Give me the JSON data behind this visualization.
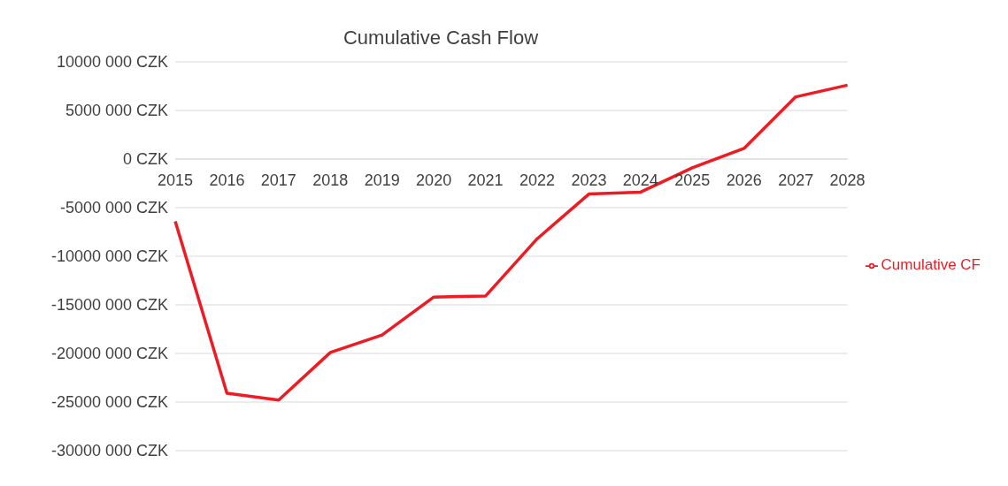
{
  "chart_data": {
    "type": "line",
    "title": "Cumulative Cash Flow",
    "categories": [
      "2015",
      "2016",
      "2017",
      "2018",
      "2019",
      "2020",
      "2021",
      "2022",
      "2023",
      "2024",
      "2025",
      "2026",
      "2027",
      "2028"
    ],
    "series": [
      {
        "name": "Cumulative CF",
        "color": "#ed1c24",
        "values": [
          -6400000,
          -24100000,
          -24800000,
          -19900000,
          -18100000,
          -14200000,
          -14100000,
          -8200000,
          -3600000,
          -3400000,
          -900000,
          1100000,
          6400000,
          7600000
        ]
      }
    ],
    "ylim": [
      -30000000,
      10000000
    ],
    "yticks": [
      {
        "value": -30000000,
        "label": "-30000 000 CZK"
      },
      {
        "value": -25000000,
        "label": "-25000 000 CZK"
      },
      {
        "value": -20000000,
        "label": "-20000 000 CZK"
      },
      {
        "value": -15000000,
        "label": "-15000 000 CZK"
      },
      {
        "value": -10000000,
        "label": "-10000 000 CZK"
      },
      {
        "value": -5000000,
        "label": "-5000 000 CZK"
      },
      {
        "value": 0,
        "label": "0 CZK"
      },
      {
        "value": 5000000,
        "label": "5000 000 CZK"
      },
      {
        "value": 10000000,
        "label": "10000 000 CZK"
      }
    ],
    "grid": "y",
    "legend": "right",
    "marker": "none",
    "line_style": "solid"
  }
}
